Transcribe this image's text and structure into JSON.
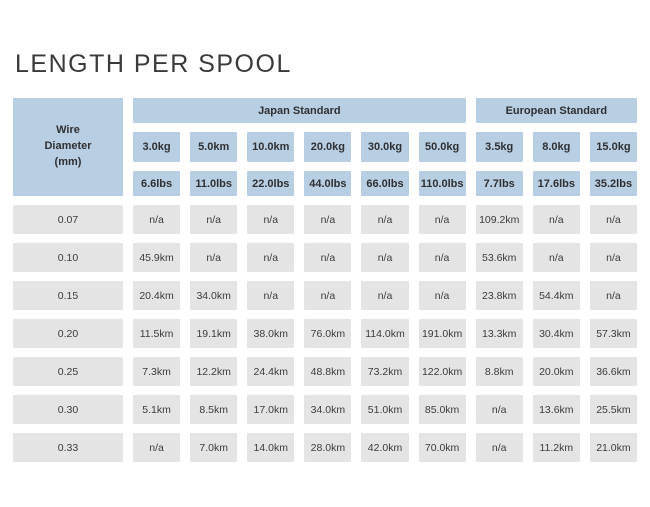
{
  "title": "LENGTH PER SPOOL",
  "chart_data": {
    "type": "table",
    "title": "LENGTH PER SPOOL",
    "corner_header": "Wire\nDiameter\n(mm)",
    "column_groups": [
      {
        "label": "Japan Standard",
        "span": 6
      },
      {
        "label": "European Standard",
        "span": 3
      }
    ],
    "kg_headers": [
      "3.0kg",
      "5.0km",
      "10.0km",
      "20.0kg",
      "30.0kg",
      "50.0kg",
      "3.5kg",
      "8.0kg",
      "15.0kg"
    ],
    "lbs_headers": [
      "6.6lbs",
      "11.0lbs",
      "22.0lbs",
      "44.0lbs",
      "66.0lbs",
      "110.0lbs",
      "7.7lbs",
      "17.6lbs",
      "35.2lbs"
    ],
    "rows": [
      {
        "diameter": "0.07",
        "values": [
          "n/a",
          "n/a",
          "n/a",
          "n/a",
          "n/a",
          "n/a",
          "109.2km",
          "n/a",
          "n/a"
        ]
      },
      {
        "diameter": "0.10",
        "values": [
          "45.9km",
          "n/a",
          "n/a",
          "n/a",
          "n/a",
          "n/a",
          "53.6km",
          "n/a",
          "n/a"
        ]
      },
      {
        "diameter": "0.15",
        "values": [
          "20.4km",
          "34.0km",
          "n/a",
          "n/a",
          "n/a",
          "n/a",
          "23.8km",
          "54.4km",
          "n/a"
        ]
      },
      {
        "diameter": "0.20",
        "values": [
          "11.5km",
          "19.1km",
          "38.0km",
          "76.0km",
          "114.0km",
          "191.0km",
          "13.3km",
          "30.4km",
          "57.3km"
        ]
      },
      {
        "diameter": "0.25",
        "values": [
          "7.3km",
          "12.2km",
          "24.4km",
          "48.8km",
          "73.2km",
          "122.0km",
          "8.8km",
          "20.0km",
          "36.6km"
        ]
      },
      {
        "diameter": "0.30",
        "values": [
          "5.1km",
          "8.5km",
          "17.0km",
          "34.0km",
          "51.0km",
          "85.0km",
          "n/a",
          "13.6km",
          "25.5km"
        ]
      },
      {
        "diameter": "0.33",
        "values": [
          "n/a",
          "7.0km",
          "14.0km",
          "28.0km",
          "42.0km",
          "70.0km",
          "n/a",
          "11.2km",
          "21.0km"
        ]
      }
    ],
    "layout_hints": {
      "header_color": "#b8cee2",
      "cell_color": "#e4e4e5",
      "title_color": "#3a3a3a",
      "grid": "off"
    }
  }
}
